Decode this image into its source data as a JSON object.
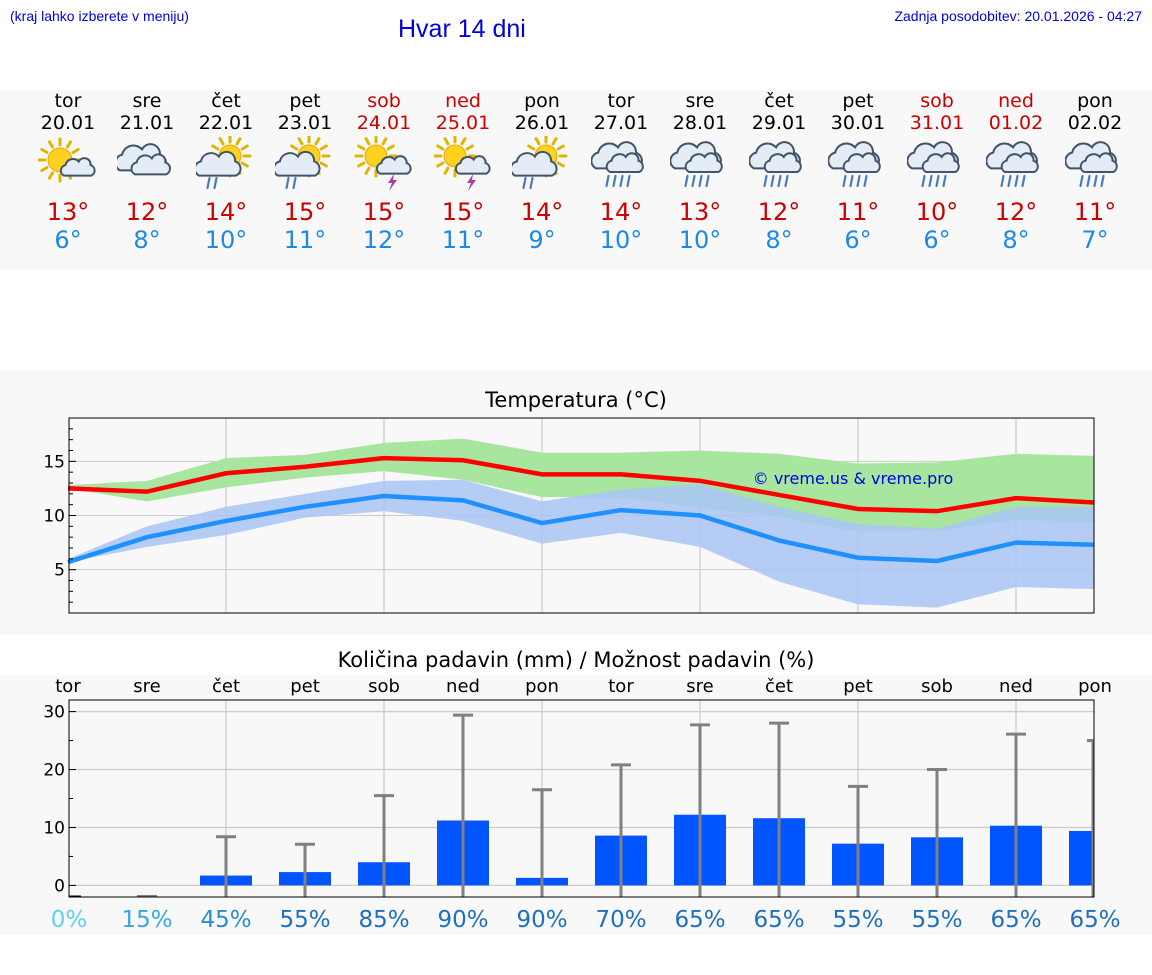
{
  "header": {
    "hint": "(kraj lahko izberete v meniju)",
    "title": "Hvar 14 dni",
    "updated": "Zadnja posodobitev: 20.01.2026 - 04:27"
  },
  "days": [
    {
      "name": "tor",
      "date": "20.01",
      "weekend": false,
      "icon": "sun-cloud-icon",
      "max": "13°",
      "min": "6°"
    },
    {
      "name": "sre",
      "date": "21.01",
      "weekend": false,
      "icon": "cloud-icon",
      "max": "12°",
      "min": "8°"
    },
    {
      "name": "čet",
      "date": "22.01",
      "weekend": false,
      "icon": "sun-cloud-rain-icon",
      "max": "14°",
      "min": "10°"
    },
    {
      "name": "pet",
      "date": "23.01",
      "weekend": false,
      "icon": "sun-cloud-rain-icon",
      "max": "15°",
      "min": "11°"
    },
    {
      "name": "sob",
      "date": "24.01",
      "weekend": true,
      "icon": "sun-storm-icon",
      "max": "15°",
      "min": "12°"
    },
    {
      "name": "ned",
      "date": "25.01",
      "weekend": true,
      "icon": "sun-storm-icon",
      "max": "15°",
      "min": "11°"
    },
    {
      "name": "pon",
      "date": "26.01",
      "weekend": false,
      "icon": "sun-cloud-rain-icon",
      "max": "14°",
      "min": "9°"
    },
    {
      "name": "tor",
      "date": "27.01",
      "weekend": false,
      "icon": "cloud-rain-icon",
      "max": "14°",
      "min": "10°"
    },
    {
      "name": "sre",
      "date": "28.01",
      "weekend": false,
      "icon": "cloud-rain-icon",
      "max": "13°",
      "min": "10°"
    },
    {
      "name": "čet",
      "date": "29.01",
      "weekend": false,
      "icon": "cloud-rain-icon",
      "max": "12°",
      "min": "8°"
    },
    {
      "name": "pet",
      "date": "30.01",
      "weekend": false,
      "icon": "cloud-rain-icon",
      "max": "11°",
      "min": "6°"
    },
    {
      "name": "sob",
      "date": "31.01",
      "weekend": true,
      "icon": "cloud-rain-icon",
      "max": "10°",
      "min": "6°"
    },
    {
      "name": "ned",
      "date": "01.02",
      "weekend": true,
      "icon": "cloud-rain-icon",
      "max": "12°",
      "min": "8°"
    },
    {
      "name": "pon",
      "date": "02.02",
      "weekend": false,
      "icon": "cloud-rain-icon",
      "max": "11°",
      "min": "7°"
    }
  ],
  "colors": {
    "max": "#ff0000",
    "min": "#1e90ff",
    "max_band": "#a8e6a0",
    "min_band": "#a9c4f5",
    "overlap": "#7cc3a8",
    "bar": "#0055ff",
    "whisker": "#808080"
  },
  "chart_data": [
    {
      "type": "line",
      "title": "Temperatura (°C)",
      "watermark": "© vreme.us & vreme.pro",
      "ylim": [
        1,
        19
      ],
      "yticks": [
        5,
        10,
        15
      ],
      "series": [
        {
          "name": "max",
          "values": [
            12.5,
            12.2,
            13.9,
            14.5,
            15.3,
            15.1,
            13.8,
            13.8,
            13.2,
            11.9,
            10.6,
            10.4,
            11.6,
            11.2
          ],
          "band_low": [
            12.5,
            11.3,
            12.6,
            13.5,
            14.1,
            13.3,
            11.7,
            11.7,
            10.7,
            9.9,
            8.5,
            8.6,
            9.6,
            9.4
          ],
          "band_high": [
            12.8,
            13.2,
            15.3,
            15.6,
            16.7,
            17.1,
            15.8,
            15.8,
            16.0,
            15.7,
            14.8,
            14.9,
            15.7,
            15.5
          ]
        },
        {
          "name": "min",
          "values": [
            5.7,
            8.0,
            9.5,
            10.8,
            11.8,
            11.4,
            9.3,
            10.5,
            10.0,
            7.7,
            6.1,
            5.8,
            7.5,
            7.3
          ],
          "band_low": [
            5.7,
            7.1,
            8.2,
            9.8,
            10.4,
            9.5,
            7.4,
            8.4,
            7.1,
            3.9,
            1.8,
            1.5,
            3.4,
            3.2
          ],
          "band_high": [
            6.0,
            9.0,
            10.8,
            12.0,
            13.2,
            13.3,
            11.3,
            12.4,
            12.9,
            10.8,
            9.2,
            8.8,
            10.8,
            10.8
          ]
        }
      ]
    },
    {
      "type": "bar",
      "title": "Količina padavin (mm) / Možnost padavin (%)",
      "categories": [
        "tor",
        "sre",
        "čet",
        "pet",
        "sob",
        "ned",
        "pon",
        "tor",
        "sre",
        "čet",
        "pet",
        "sob",
        "ned",
        "pon"
      ],
      "values": [
        0,
        0,
        1.7,
        2.3,
        4.0,
        11.2,
        1.3,
        8.6,
        12.2,
        11.6,
        7.2,
        8.3,
        10.3,
        9.4
      ],
      "max_values": [
        0,
        0,
        8.4,
        7.1,
        15.5,
        29.4,
        16.5,
        20.8,
        27.7,
        28.0,
        17.1,
        20.0,
        26.1,
        25.0
      ],
      "probability": [
        "0%",
        "15%",
        "45%",
        "55%",
        "85%",
        "90%",
        "90%",
        "70%",
        "65%",
        "65%",
        "55%",
        "55%",
        "65%",
        "65%"
      ],
      "prob_colors": [
        "#5ad2f0",
        "#3aa8e0",
        "#2b8cd0",
        "#1f6fc0",
        "#1f6fc0",
        "#1f6fc0",
        "#1f6fc0",
        "#1f6fc0",
        "#1f6fc0",
        "#1f6fc0",
        "#1f6fc0",
        "#1f6fc0",
        "#1f6fc0",
        "#1f6fc0"
      ],
      "ylim": [
        -2,
        32
      ],
      "yticks": [
        0,
        10,
        20,
        30
      ]
    }
  ]
}
